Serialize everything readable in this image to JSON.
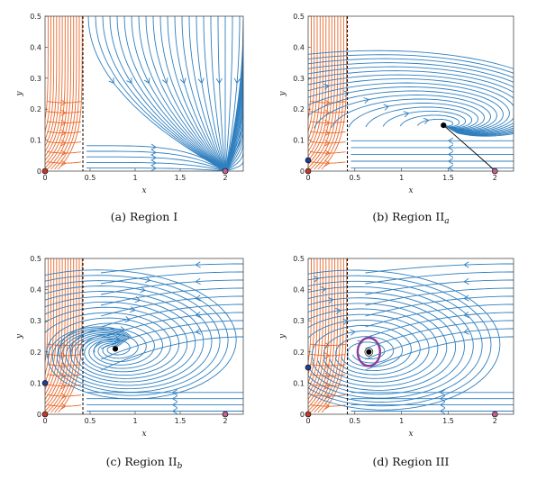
{
  "colors": {
    "stream_right": "#2f7fbf",
    "stream_left": "#e9692c",
    "separatrix": "#000000",
    "eq_red": "#c0392b",
    "eq_blue": "#1f3f9a",
    "eq_magenta": "#c06090",
    "eq_black": "#000000",
    "limit_cycle": "#8e3a9a"
  },
  "chart_data": [
    {
      "type": "streamplot",
      "caption_tag": "(a)",
      "caption_text": "Region I",
      "caption_sub": "",
      "xlabel": "x",
      "ylabel": "y",
      "xlim": [
        0,
        2.2
      ],
      "ylim": [
        0,
        0.5
      ],
      "xticks": [
        "0",
        "0.5",
        "1",
        "1.5",
        "2"
      ],
      "xtick_values": [
        0,
        0.5,
        1,
        1.5,
        2
      ],
      "yticks": [
        "0",
        "0.1",
        "0.2",
        "0.3",
        "0.4",
        "0.5"
      ],
      "ytick_values": [
        0,
        0.1,
        0.2,
        0.3,
        0.4,
        0.5
      ],
      "separatrix_x": 0.42,
      "equilibria": [
        {
          "x": 0,
          "y": 0,
          "color": "eq_red"
        },
        {
          "x": 2,
          "y": 0,
          "color": "eq_magenta"
        }
      ],
      "interior": null
    },
    {
      "type": "streamplot",
      "caption_tag": "(b)",
      "caption_text": "Region II",
      "caption_sub": "a",
      "xlabel": "x",
      "ylabel": "y",
      "xlim": [
        0,
        2.2
      ],
      "ylim": [
        0,
        0.5
      ],
      "xticks": [
        "0",
        "0.5",
        "1",
        "1.5",
        "2"
      ],
      "xtick_values": [
        0,
        0.5,
        1,
        1.5,
        2
      ],
      "yticks": [
        "0",
        "0.1",
        "0.2",
        "0.3",
        "0.4",
        "0.5"
      ],
      "ytick_values": [
        0,
        0.1,
        0.2,
        0.3,
        0.4,
        0.5
      ],
      "separatrix_x": 0.42,
      "equilibria": [
        {
          "x": 0,
          "y": 0,
          "color": "eq_red"
        },
        {
          "x": 0,
          "y": 0.035,
          "color": "eq_blue"
        },
        {
          "x": 2,
          "y": 0,
          "color": "eq_magenta"
        },
        {
          "x": 1.45,
          "y": 0.148,
          "color": "eq_black"
        }
      ],
      "interior": {
        "x": 1.45,
        "y": 0.148,
        "kind": "node"
      }
    },
    {
      "type": "streamplot",
      "caption_tag": "(c)",
      "caption_text": "Region II",
      "caption_sub": "b",
      "xlabel": "x",
      "ylabel": "y",
      "xlim": [
        0,
        2.2
      ],
      "ylim": [
        0,
        0.5
      ],
      "xticks": [
        "0",
        "0.5",
        "1",
        "1.5",
        "2"
      ],
      "xtick_values": [
        0,
        0.5,
        1,
        1.5,
        2
      ],
      "yticks": [
        "0",
        "0.1",
        "0.2",
        "0.3",
        "0.4",
        "0.5"
      ],
      "ytick_values": [
        0,
        0.1,
        0.2,
        0.3,
        0.4,
        0.5
      ],
      "separatrix_x": 0.42,
      "equilibria": [
        {
          "x": 0,
          "y": 0,
          "color": "eq_red"
        },
        {
          "x": 0,
          "y": 0.1,
          "color": "eq_blue"
        },
        {
          "x": 2,
          "y": 0,
          "color": "eq_magenta"
        },
        {
          "x": 0.78,
          "y": 0.21,
          "color": "eq_black"
        }
      ],
      "interior": {
        "x": 0.78,
        "y": 0.21,
        "kind": "focus"
      }
    },
    {
      "type": "streamplot",
      "caption_tag": "(d)",
      "caption_text": "Region III",
      "caption_sub": "",
      "xlabel": "x",
      "ylabel": "y",
      "xlim": [
        0,
        2.2
      ],
      "ylim": [
        0,
        0.5
      ],
      "xticks": [
        "0",
        "0.5",
        "1",
        "1.5",
        "2"
      ],
      "xtick_values": [
        0,
        0.5,
        1,
        1.5,
        2
      ],
      "yticks": [
        "0",
        "0.1",
        "0.2",
        "0.3",
        "0.4",
        "0.5"
      ],
      "ytick_values": [
        0,
        0.1,
        0.2,
        0.3,
        0.4,
        0.5
      ],
      "separatrix_x": 0.42,
      "equilibria": [
        {
          "x": 0,
          "y": 0,
          "color": "eq_red"
        },
        {
          "x": 0,
          "y": 0.15,
          "color": "eq_blue"
        },
        {
          "x": 2,
          "y": 0,
          "color": "eq_magenta"
        },
        {
          "x": 0.65,
          "y": 0.2,
          "color": "eq_black"
        }
      ],
      "interior": {
        "x": 0.65,
        "y": 0.2,
        "kind": "cycle",
        "cycle_rx": 0.12,
        "cycle_ry": 0.045
      }
    }
  ]
}
